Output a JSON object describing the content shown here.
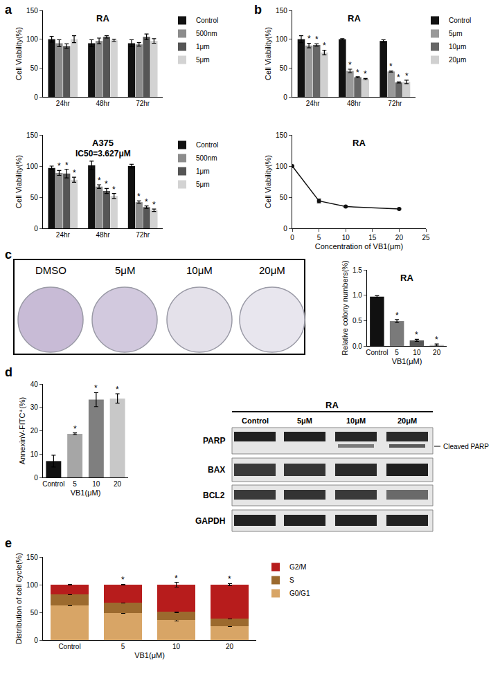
{
  "chart_data": [
    {
      "panel_label": "a",
      "type": "bar",
      "title": "RA",
      "categories": [
        "24hr",
        "48hr",
        "72hr"
      ],
      "y_label": "Cell Viability(%)",
      "ylim": [
        0,
        150
      ],
      "yticks": [
        0,
        50,
        100,
        150
      ],
      "grid": false,
      "legend": "right",
      "series": [
        {
          "name": "Control",
          "color": "#111111",
          "values": [
            100,
            93,
            93
          ],
          "errors": [
            5,
            6,
            6
          ]
        },
        {
          "name": "500nm",
          "color": "#8c8c8c",
          "values": [
            93,
            97,
            91
          ],
          "errors": [
            6,
            5,
            3
          ]
        },
        {
          "name": "1μm",
          "color": "#555555",
          "values": [
            88,
            104,
            104
          ],
          "errors": [
            4,
            2,
            5
          ]
        },
        {
          "name": "5μm",
          "color": "#d3d3d3",
          "values": [
            100,
            98,
            97
          ],
          "errors": [
            6,
            2,
            4
          ]
        }
      ]
    },
    {
      "type": "bar",
      "title": "A375",
      "subtitle": "IC50=3.627μM",
      "categories": [
        "24hr",
        "48hr",
        "72hr"
      ],
      "y_label": "Cell Viability(%)",
      "ylim": [
        0,
        150
      ],
      "yticks": [
        0,
        50,
        100,
        150
      ],
      "grid": false,
      "legend": "right",
      "series": [
        {
          "name": "Control",
          "color": "#111111",
          "values": [
            97,
            101,
            100
          ],
          "errors": [
            3,
            7,
            3
          ]
        },
        {
          "name": "500nm",
          "color": "#8c8c8c",
          "values": [
            89,
            67,
            42
          ],
          "errors": [
            4,
            3,
            2
          ],
          "annotations": [
            "*",
            "*",
            "*"
          ]
        },
        {
          "name": "1μm",
          "color": "#555555",
          "values": [
            88,
            60,
            34
          ],
          "errors": [
            7,
            4,
            2
          ],
          "annotations": [
            "*",
            "*",
            "*"
          ]
        },
        {
          "name": "5μm",
          "color": "#d3d3d3",
          "values": [
            78,
            52,
            29
          ],
          "errors": [
            4,
            4,
            2
          ],
          "annotations": [
            "*",
            "*",
            "*"
          ]
        }
      ]
    },
    {
      "panel_label": "b",
      "type": "bar",
      "title": "RA",
      "categories": [
        "24hr",
        "48hr",
        "72hr"
      ],
      "y_label": "Cell Viability(%)",
      "ylim": [
        0,
        150
      ],
      "yticks": [
        0,
        50,
        100,
        150
      ],
      "grid": false,
      "legend": "right",
      "series": [
        {
          "name": "Control",
          "color": "#111111",
          "values": [
            100,
            100,
            97
          ],
          "errors": [
            6,
            1,
            2
          ]
        },
        {
          "name": "5μm",
          "color": "#999999",
          "values": [
            89,
            45,
            44
          ],
          "errors": [
            4,
            3,
            1
          ],
          "annotations": [
            "*",
            "*",
            "*"
          ]
        },
        {
          "name": "10μm",
          "color": "#666666",
          "values": [
            90,
            34,
            25
          ],
          "errors": [
            2,
            1,
            1
          ],
          "annotations": [
            "*",
            "*",
            "*"
          ]
        },
        {
          "name": "20μm",
          "color": "#d0d0d0",
          "values": [
            77,
            31,
            26
          ],
          "errors": [
            4,
            1,
            3
          ],
          "annotations": [
            "*",
            "*",
            "*"
          ]
        }
      ]
    },
    {
      "type": "line",
      "title": "RA",
      "x": [
        0,
        5,
        10,
        20
      ],
      "values": [
        100,
        44,
        35,
        31
      ],
      "errors": [
        0,
        3,
        1,
        1
      ],
      "x_label": "Concentration of VB1(μm)",
      "y_label": "Cell Viability(%)",
      "xlim": [
        0,
        25
      ],
      "xticks": [
        0,
        5,
        10,
        15,
        20,
        25
      ],
      "ylim": [
        0,
        150
      ],
      "yticks": [
        0,
        50,
        100,
        150
      ],
      "grid": false,
      "color": "#111111",
      "marker": "circle"
    },
    {
      "panel_label": "c",
      "type": "bar",
      "title": "RA",
      "categories": [
        "Control",
        "5",
        "10",
        "20"
      ],
      "x_label": "VB1(μM)",
      "y_label": "Relative colony numbers(%)",
      "ylim": [
        0,
        1.5
      ],
      "yticks": [
        {
          "value": 0,
          "label": "0.0"
        },
        {
          "value": 0.5,
          "label": "0.5"
        },
        {
          "value": 1,
          "label": "1.0"
        },
        {
          "value": 1.5,
          "label": "1.5"
        }
      ],
      "grid": false,
      "values": [
        0.97,
        0.49,
        0.11,
        0.02
      ],
      "errors": [
        0.02,
        0.03,
        0.02,
        0.02
      ],
      "colors": [
        "#111111",
        "#7a7a7a",
        "#555555",
        "#bbbbbb"
      ],
      "annotations": [
        null,
        "*",
        "*",
        "*"
      ]
    },
    {
      "panel_label": "d",
      "type": "bar",
      "categories": [
        "Control",
        "5",
        "10",
        "20"
      ],
      "x_label": "VB1(μM)",
      "y_label": "AnnexinV-FITC⁺(%)",
      "ylim": [
        0,
        40
      ],
      "yticks": [
        0,
        10,
        20,
        30,
        40
      ],
      "grid": false,
      "values": [
        7,
        18.7,
        33.3,
        33.8
      ],
      "errors": [
        2.5,
        0.4,
        3,
        2
      ],
      "colors": [
        "#111111",
        "#a6a6a6",
        "#7f7f7f",
        "#c8c8c8"
      ],
      "annotations": [
        null,
        "*",
        "*",
        "*"
      ]
    },
    {
      "panel_label": "e",
      "type": "bar",
      "stacked": true,
      "categories": [
        "Control",
        "5",
        "10",
        "20"
      ],
      "x_label": "VB1(μM)",
      "y_label": "Distribution of cell cycle(%)",
      "ylim": [
        0,
        150
      ],
      "yticks": [
        0,
        50,
        100,
        150
      ],
      "grid": false,
      "legend": "right",
      "series": [
        {
          "name": "G0/G1",
          "color": "#d8a566",
          "values": [
            63,
            49,
            36,
            25
          ],
          "errors": [
            1,
            1,
            2,
            1
          ]
        },
        {
          "name": "S",
          "color": "#9c6a2e",
          "values": [
            20,
            19,
            15,
            14
          ],
          "errors": [
            1,
            1,
            1,
            1
          ]
        },
        {
          "name": "G2/M",
          "color": "#b71c1c",
          "values": [
            17,
            32,
            49,
            61
          ],
          "errors": [
            1,
            1,
            4,
            2
          ],
          "annotations": [
            null,
            "*",
            "*",
            "*"
          ]
        }
      ]
    }
  ],
  "colony_plates": {
    "labels": [
      "DMSO",
      "5μM",
      "10μM",
      "20μM"
    ]
  },
  "western_blot": {
    "title": "RA",
    "lanes": [
      "Control",
      "5μM",
      "10μM",
      "20μM"
    ],
    "rows": [
      "PARP",
      "BAX",
      "BCL2",
      "GAPDH"
    ],
    "side_label": "Cleaved PARP"
  }
}
